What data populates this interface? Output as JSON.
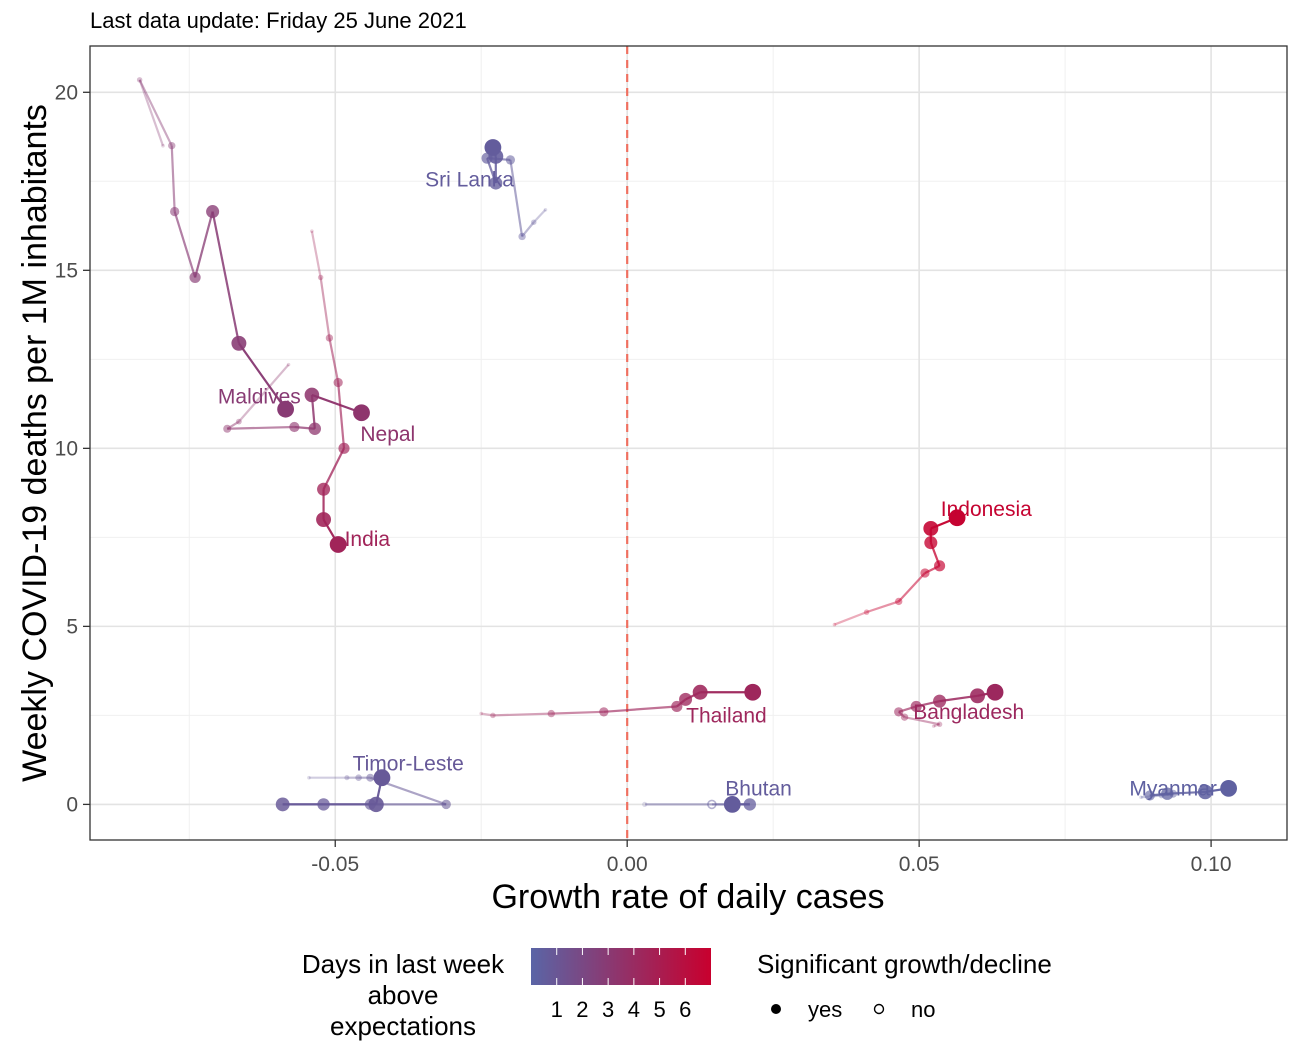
{
  "subtitle": "Last data update: Friday 25 June 2021",
  "chart_data": {
    "type": "scatter",
    "xlabel": "Growth rate of daily cases",
    "ylabel": "Weekly COVID-19 deaths per 1M inhabitants",
    "xlim": [
      -0.092,
      0.113
    ],
    "ylim": [
      -1.0,
      21.3
    ],
    "x_ticks": [
      -0.05,
      0.0,
      0.05,
      0.1
    ],
    "x_tick_labels": [
      "-0.05",
      "0.00",
      "0.05",
      "0.10"
    ],
    "y_ticks": [
      0,
      5,
      10,
      15,
      20
    ],
    "y_tick_labels": [
      "0",
      "5",
      "10",
      "15",
      "20"
    ],
    "grid": true,
    "reference_line": {
      "x": 0.0,
      "color": "#f07060",
      "style": "dashed"
    },
    "color_scale": {
      "title": "Days in last week above expectations",
      "title_lines": [
        "Days in last week",
        "above",
        "expectations"
      ],
      "low_color": "#5a65a6",
      "high_color": "#c8002e",
      "breaks": [
        1,
        2,
        3,
        4,
        5,
        6
      ],
      "break_labels": [
        "1",
        "2",
        "3",
        "4",
        "5",
        "6"
      ],
      "domain": [
        0,
        7
      ]
    },
    "shape_legend": {
      "title": "Significant growth/decline",
      "items": [
        {
          "label": "yes",
          "filled": true
        },
        {
          "label": "no",
          "filled": false
        }
      ]
    },
    "series": [
      {
        "name": "Sri Lanka",
        "days": 0.6,
        "label_at": [
          -0.027,
          17.55
        ],
        "points": [
          [
            -0.014,
            16.7
          ],
          [
            -0.016,
            16.35
          ],
          [
            -0.018,
            15.95
          ],
          [
            -0.02,
            18.1
          ],
          [
            -0.024,
            18.15
          ],
          [
            -0.0225,
            17.45
          ],
          [
            -0.0225,
            18.2
          ],
          [
            -0.023,
            18.45
          ]
        ],
        "sig": [
          true,
          true,
          true,
          true,
          true,
          true,
          true,
          true
        ]
      },
      {
        "name": "Maldives",
        "days": 2.9,
        "label_at": [
          -0.063,
          11.45
        ],
        "points": [
          [
            -0.0795,
            18.5
          ],
          [
            -0.0835,
            20.35
          ],
          [
            -0.078,
            18.5
          ],
          [
            -0.0775,
            16.65
          ],
          [
            -0.074,
            14.8
          ],
          [
            -0.071,
            16.65
          ],
          [
            -0.0665,
            12.95
          ],
          [
            -0.0585,
            11.1
          ]
        ],
        "sig": [
          true,
          true,
          true,
          true,
          true,
          true,
          true,
          true
        ]
      },
      {
        "name": "Nepal",
        "days": 3.3,
        "label_at": [
          -0.041,
          10.4
        ],
        "points": [
          [
            -0.058,
            12.35
          ],
          [
            -0.0665,
            10.75
          ],
          [
            -0.0685,
            10.55
          ],
          [
            -0.057,
            10.6
          ],
          [
            -0.0535,
            10.55
          ],
          [
            -0.054,
            11.5
          ],
          [
            -0.0455,
            11.0
          ]
        ],
        "sig": [
          true,
          true,
          true,
          true,
          true,
          true,
          true
        ]
      },
      {
        "name": "India",
        "days": 4.5,
        "label_at": [
          -0.0445,
          7.45
        ],
        "points": [
          [
            -0.054,
            16.1
          ],
          [
            -0.0525,
            14.8
          ],
          [
            -0.051,
            13.1
          ],
          [
            -0.0495,
            11.85
          ],
          [
            -0.0485,
            10.0
          ],
          [
            -0.052,
            8.85
          ],
          [
            -0.052,
            8.0
          ],
          [
            -0.0495,
            7.3
          ]
        ],
        "sig": [
          true,
          true,
          true,
          true,
          true,
          true,
          true,
          true
        ]
      },
      {
        "name": "Indonesia",
        "days": 6.8,
        "label_at": [
          0.0615,
          8.3
        ],
        "points": [
          [
            0.0355,
            5.05
          ],
          [
            0.041,
            5.4
          ],
          [
            0.0465,
            5.7
          ],
          [
            0.051,
            6.5
          ],
          [
            0.0535,
            6.7
          ],
          [
            0.052,
            7.35
          ],
          [
            0.052,
            7.75
          ],
          [
            0.0565,
            8.05
          ]
        ],
        "sig": [
          true,
          true,
          true,
          true,
          true,
          true,
          true,
          true
        ]
      },
      {
        "name": "Thailand",
        "days": 4.3,
        "label_at": [
          0.017,
          2.5
        ],
        "points": [
          [
            -0.025,
            2.55
          ],
          [
            -0.023,
            2.5
          ],
          [
            -0.013,
            2.55
          ],
          [
            -0.004,
            2.6
          ],
          [
            0.0085,
            2.75
          ],
          [
            0.01,
            2.95
          ],
          [
            0.0125,
            3.15
          ],
          [
            0.0215,
            3.15
          ]
        ],
        "sig": [
          true,
          true,
          true,
          true,
          true,
          true,
          true,
          true
        ]
      },
      {
        "name": "Bangladesh",
        "days": 4.2,
        "label_at": [
          0.0585,
          2.6
        ],
        "points": [
          [
            0.0525,
            2.2
          ],
          [
            0.0535,
            2.25
          ],
          [
            0.0475,
            2.45
          ],
          [
            0.0465,
            2.6
          ],
          [
            0.0495,
            2.75
          ],
          [
            0.0535,
            2.9
          ],
          [
            0.06,
            3.05
          ],
          [
            0.063,
            3.15
          ]
        ],
        "sig": [
          true,
          true,
          true,
          true,
          true,
          true,
          true,
          true
        ]
      },
      {
        "name": "Timor-Leste",
        "days": 0.8,
        "label_at": [
          -0.0375,
          1.15
        ],
        "points": [
          [
            -0.0545,
            0.75
          ],
          [
            -0.048,
            0.75
          ],
          [
            -0.046,
            0.75
          ],
          [
            -0.044,
            0.75
          ],
          [
            -0.031,
            0.0
          ],
          [
            -0.044,
            0.0
          ],
          [
            -0.052,
            0.0
          ],
          [
            -0.059,
            0.0
          ],
          [
            -0.043,
            0.0
          ],
          [
            -0.042,
            0.75
          ]
        ],
        "sig": [
          true,
          true,
          true,
          true,
          true,
          true,
          true,
          true,
          true,
          true
        ]
      },
      {
        "name": "Bhutan",
        "days": 0.6,
        "label_at": [
          0.0225,
          0.45
        ],
        "points": [
          [
            0.003,
            0.0
          ],
          [
            0.0145,
            0.0
          ],
          [
            0.021,
            0.0
          ],
          [
            0.018,
            0.0
          ]
        ],
        "sig": [
          false,
          false,
          true,
          true
        ]
      },
      {
        "name": "Myanmar",
        "days": 0.3,
        "label_at": [
          0.0935,
          0.45
        ],
        "points": [
          [
            0.088,
            0.2
          ],
          [
            0.0915,
            0.25
          ],
          [
            0.0935,
            0.3
          ],
          [
            0.0895,
            0.25
          ],
          [
            0.0925,
            0.3
          ],
          [
            0.099,
            0.35
          ],
          [
            0.103,
            0.45
          ]
        ],
        "sig": [
          true,
          true,
          true,
          true,
          true,
          true,
          true
        ]
      }
    ]
  }
}
